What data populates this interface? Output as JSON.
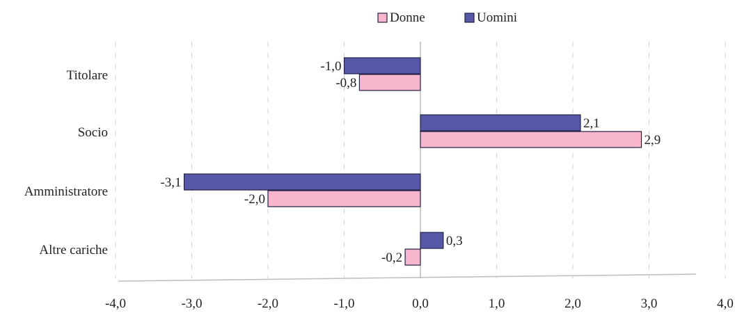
{
  "chart_data": {
    "type": "bar",
    "orientation": "horizontal",
    "categories": [
      "Titolare",
      "Socio",
      "Amministratore",
      "Altre cariche"
    ],
    "series": [
      {
        "name": "Donne",
        "values": [
          -0.8,
          2.9,
          -2.0,
          -0.2
        ],
        "labels": [
          "-0,8",
          "2,9",
          "-2,0",
          "-0,2"
        ],
        "color": "#f7b6ce"
      },
      {
        "name": "Uomini",
        "values": [
          -1.0,
          2.1,
          -3.1,
          0.3
        ],
        "labels": [
          "-1,0",
          "2,1",
          "-3,1",
          "0,3"
        ],
        "color": "#5858a8"
      }
    ],
    "x_ticks": [
      "-4,0",
      "-3,0",
      "-2,0",
      "-1,0",
      "0,0",
      "1,0",
      "2,0",
      "3,0",
      "4,0"
    ],
    "xlim": [
      -4,
      4
    ],
    "grid": "vertical dashed",
    "legend": "top-center"
  }
}
